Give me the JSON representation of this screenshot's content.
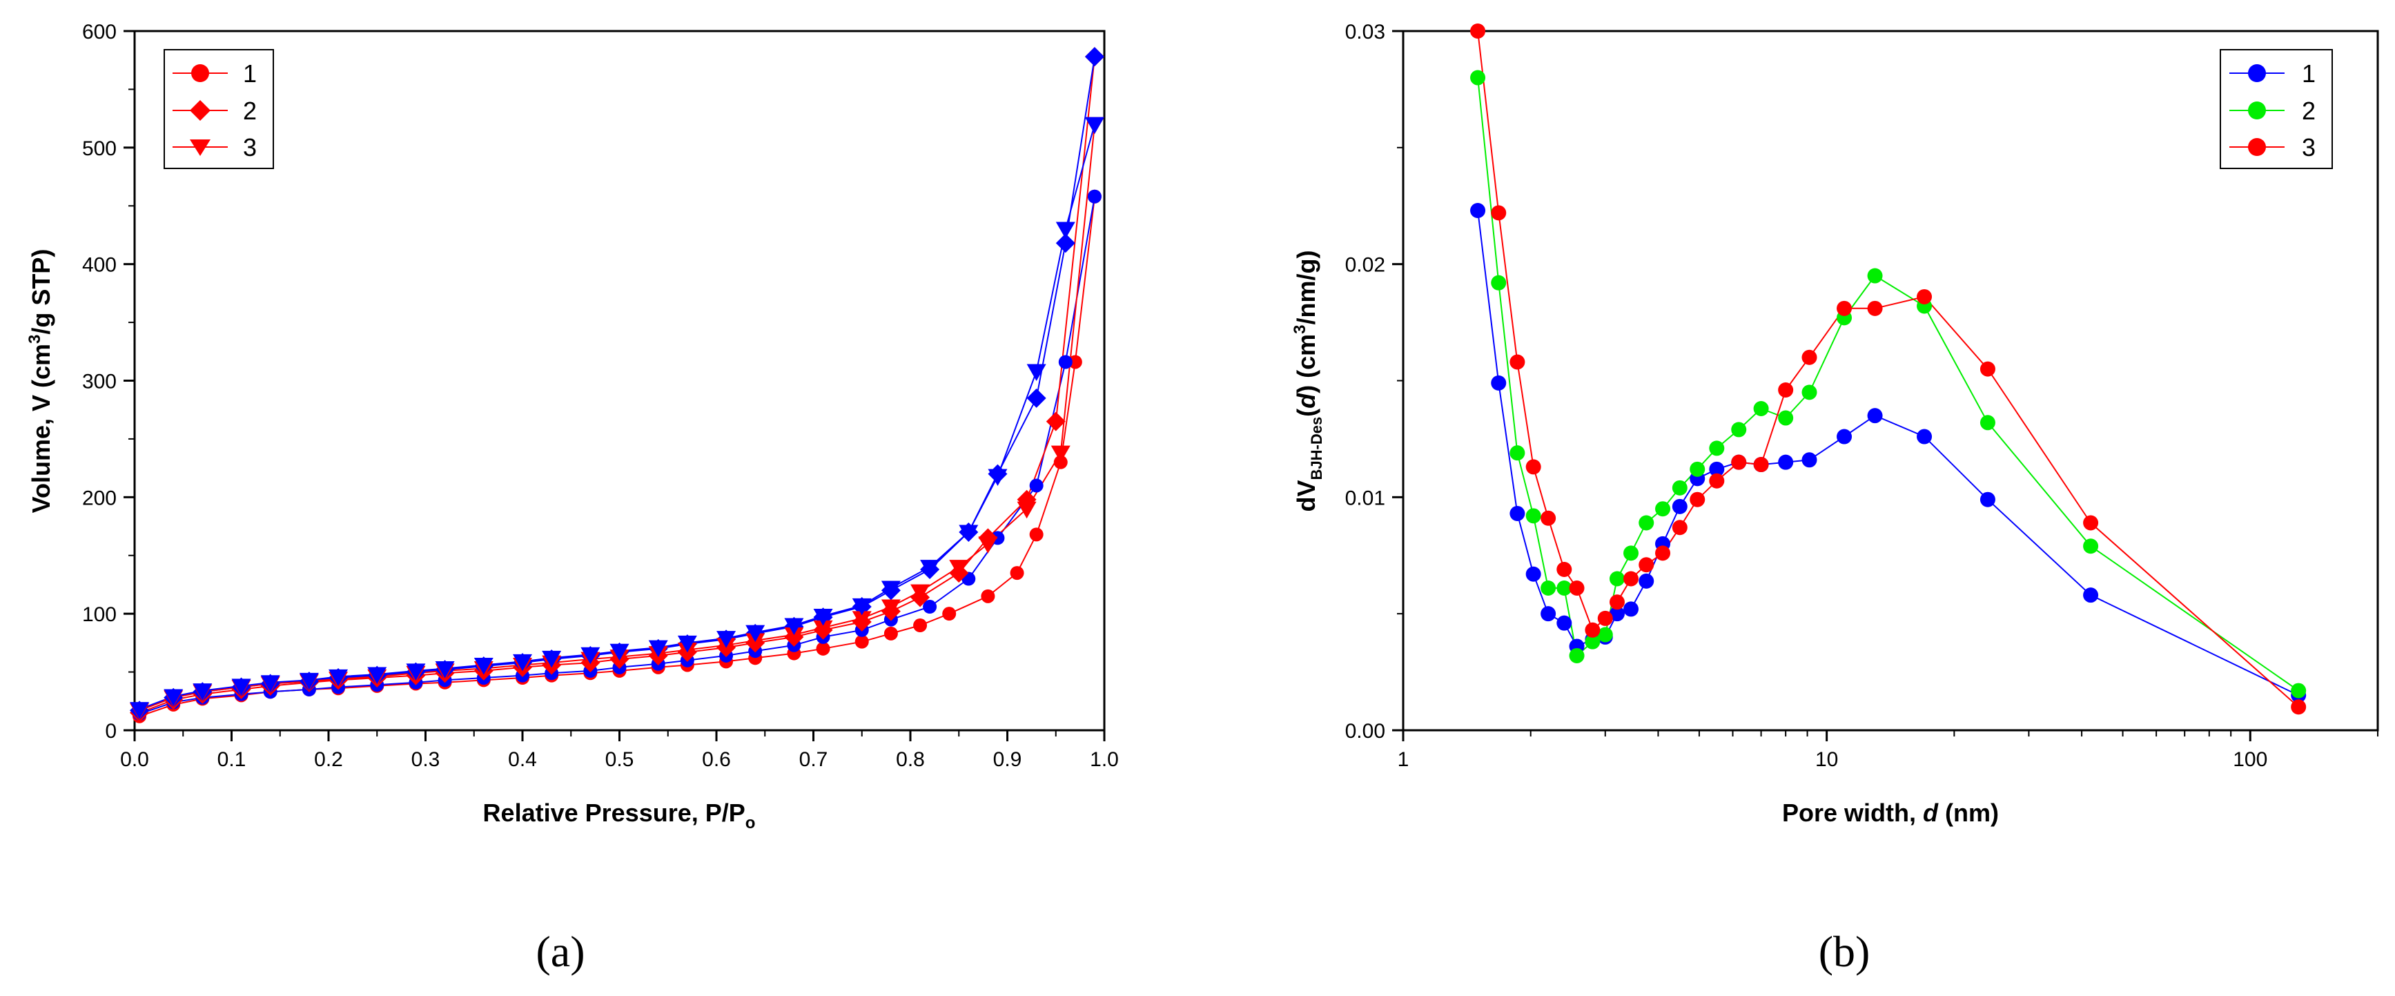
{
  "chart_data": [
    {
      "type": "scatter",
      "panel_label": "(a)",
      "xlabel_main": "Relative Pressure, P/P",
      "xlabel_sub": "o",
      "ylabel_pre": "Volume, V (cm",
      "ylabel_sup": "3",
      "ylabel_post": "/g STP)",
      "xlim": [
        0,
        1.0
      ],
      "ylim": [
        0,
        600
      ],
      "x_ticks": [
        0.0,
        0.1,
        0.2,
        0.3,
        0.4,
        0.5,
        0.6,
        0.7,
        0.8,
        0.9,
        1.0
      ],
      "x_tick_labels": [
        "0.0",
        "0.1",
        "0.2",
        "0.3",
        "0.4",
        "0.5",
        "0.6",
        "0.7",
        "0.8",
        "0.9",
        "1.0"
      ],
      "y_ticks": [
        0,
        100,
        200,
        300,
        400,
        500,
        600
      ],
      "y_tick_labels": [
        "0",
        "100",
        "200",
        "300",
        "400",
        "500",
        "600"
      ],
      "legend_position": "top-left",
      "legend": [
        "1",
        "2",
        "3"
      ],
      "colors": {
        "red": "#ff0000",
        "blue": "#0000ff"
      },
      "series": [
        {
          "name": "1",
          "marker": "circle",
          "branch": "adsorption",
          "color": "#ff0000",
          "x": [
            0.005,
            0.04,
            0.07,
            0.11,
            0.14,
            0.18,
            0.21,
            0.25,
            0.29,
            0.32,
            0.36,
            0.4,
            0.43,
            0.47,
            0.5,
            0.54,
            0.57,
            0.61,
            0.64,
            0.68,
            0.71,
            0.75,
            0.78,
            0.81,
            0.84,
            0.88,
            0.91,
            0.93,
            0.955,
            0.97,
            0.99
          ],
          "y": [
            12,
            22,
            27,
            30,
            33,
            35,
            36,
            38,
            40,
            41,
            43,
            45,
            47,
            49,
            51,
            54,
            56,
            59,
            62,
            66,
            70,
            76,
            83,
            90,
            100,
            115,
            135,
            168,
            230,
            316,
            458
          ]
        },
        {
          "name": "1",
          "marker": "circle",
          "branch": "desorption",
          "color": "#0000ff",
          "x": [
            0.99,
            0.96,
            0.93,
            0.89,
            0.86,
            0.82,
            0.78,
            0.75,
            0.71,
            0.68,
            0.64,
            0.61,
            0.57,
            0.54,
            0.5,
            0.47,
            0.43,
            0.4,
            0.36,
            0.32,
            0.29,
            0.25,
            0.21,
            0.18,
            0.14,
            0.11,
            0.07,
            0.04,
            0.005
          ],
          "y": [
            458,
            316,
            210,
            165,
            130,
            106,
            95,
            86,
            80,
            73,
            68,
            64,
            60,
            57,
            54,
            51,
            49,
            47,
            45,
            43,
            41,
            39,
            37,
            35,
            33,
            31,
            28,
            24,
            14
          ]
        },
        {
          "name": "2",
          "marker": "diamond",
          "branch": "adsorption",
          "color": "#ff0000",
          "x": [
            0.005,
            0.04,
            0.07,
            0.11,
            0.14,
            0.18,
            0.21,
            0.25,
            0.29,
            0.32,
            0.36,
            0.4,
            0.43,
            0.47,
            0.5,
            0.54,
            0.57,
            0.61,
            0.64,
            0.68,
            0.71,
            0.75,
            0.78,
            0.81,
            0.85,
            0.88,
            0.92,
            0.95,
            0.99
          ],
          "y": [
            15,
            26,
            31,
            35,
            38,
            41,
            43,
            45,
            47,
            49,
            51,
            54,
            56,
            58,
            61,
            64,
            67,
            71,
            75,
            80,
            86,
            93,
            102,
            114,
            135,
            165,
            198,
            265,
            578
          ]
        },
        {
          "name": "2",
          "marker": "diamond",
          "branch": "desorption",
          "color": "#0000ff",
          "x": [
            0.99,
            0.96,
            0.93,
            0.89,
            0.86,
            0.82,
            0.78,
            0.75,
            0.71,
            0.68,
            0.64,
            0.61,
            0.57,
            0.54,
            0.5,
            0.47,
            0.43,
            0.4,
            0.36,
            0.32,
            0.29,
            0.25,
            0.21,
            0.18,
            0.14,
            0.11,
            0.07,
            0.04,
            0.005
          ],
          "y": [
            578,
            418,
            285,
            220,
            170,
            138,
            120,
            106,
            97,
            89,
            83,
            78,
            74,
            70,
            67,
            64,
            61,
            58,
            55,
            52,
            50,
            47,
            45,
            42,
            40,
            37,
            33,
            28,
            17
          ]
        },
        {
          "name": "3",
          "marker": "triangle-down",
          "branch": "adsorption",
          "color": "#ff0000",
          "x": [
            0.005,
            0.04,
            0.07,
            0.11,
            0.14,
            0.18,
            0.21,
            0.25,
            0.29,
            0.32,
            0.36,
            0.4,
            0.43,
            0.47,
            0.5,
            0.54,
            0.57,
            0.61,
            0.64,
            0.68,
            0.71,
            0.75,
            0.78,
            0.81,
            0.85,
            0.88,
            0.92,
            0.955,
            0.99
          ],
          "y": [
            17,
            28,
            33,
            37,
            40,
            42,
            44,
            46,
            49,
            51,
            53,
            56,
            58,
            61,
            63,
            66,
            69,
            73,
            77,
            82,
            88,
            96,
            106,
            119,
            140,
            160,
            190,
            238,
            520
          ]
        },
        {
          "name": "3",
          "marker": "triangle-down",
          "branch": "desorption",
          "color": "#0000ff",
          "x": [
            0.99,
            0.96,
            0.93,
            0.89,
            0.86,
            0.82,
            0.78,
            0.75,
            0.71,
            0.68,
            0.64,
            0.61,
            0.57,
            0.54,
            0.5,
            0.47,
            0.43,
            0.4,
            0.36,
            0.32,
            0.29,
            0.25,
            0.21,
            0.18,
            0.14,
            0.11,
            0.07,
            0.04,
            0.005
          ],
          "y": [
            520,
            430,
            308,
            218,
            170,
            140,
            122,
            107,
            98,
            90,
            84,
            79,
            75,
            71,
            68,
            65,
            62,
            59,
            56,
            53,
            51,
            48,
            46,
            43,
            41,
            38,
            34,
            29,
            18
          ]
        }
      ]
    },
    {
      "type": "line",
      "panel_label": "(b)",
      "xscale": "log",
      "xlabel_main": "Pore width, ",
      "xlabel_var": "d",
      "xlabel_post": " (nm)",
      "ylabel_a": "dV",
      "ylabel_sub": "BJH-Des",
      "ylabel_b": "(",
      "ylabel_var": "d",
      "ylabel_c": ") (cm",
      "ylabel_sup": "3",
      "ylabel_d": "/nm/g)",
      "xlim": [
        1,
        200
      ],
      "ylim": [
        0,
        0.03
      ],
      "x_ticks": [
        1,
        10,
        100
      ],
      "x_tick_labels": [
        "1",
        "10",
        "100"
      ],
      "y_ticks": [
        0,
        0.01,
        0.02,
        0.03
      ],
      "y_tick_labels": [
        "0.00",
        "0.01",
        "0.02",
        "0.03"
      ],
      "legend_position": "top-right",
      "legend": [
        "1",
        "2",
        "3"
      ],
      "series": [
        {
          "name": "1",
          "color": "#0000ff",
          "x": [
            1.5,
            1.68,
            1.86,
            2.03,
            2.2,
            2.4,
            2.57,
            2.8,
            3.0,
            3.2,
            3.45,
            3.75,
            4.1,
            4.5,
            4.95,
            5.5,
            6.2,
            7.0,
            8.0,
            9.1,
            11.0,
            13.0,
            17.0,
            24.0,
            42.0,
            130.0
          ],
          "y": [
            0.0223,
            0.0149,
            0.0093,
            0.0067,
            0.005,
            0.0046,
            0.0036,
            0.0039,
            0.004,
            0.005,
            0.0052,
            0.0064,
            0.008,
            0.0096,
            0.0108,
            0.0112,
            0.0115,
            0.0114,
            0.0115,
            0.0116,
            0.0126,
            0.0135,
            0.0126,
            0.0099,
            0.0058,
            0.0015
          ]
        },
        {
          "name": "2",
          "color": "#00ee00",
          "x": [
            1.5,
            1.68,
            1.86,
            2.03,
            2.2,
            2.4,
            2.57,
            2.8,
            3.0,
            3.2,
            3.45,
            3.75,
            4.1,
            4.5,
            4.95,
            5.5,
            6.2,
            7.0,
            8.0,
            9.1,
            11.0,
            13.0,
            17.0,
            24.0,
            42.0,
            130.0
          ],
          "y": [
            0.028,
            0.0192,
            0.0119,
            0.0092,
            0.0061,
            0.0061,
            0.0032,
            0.0038,
            0.0041,
            0.0065,
            0.0076,
            0.0089,
            0.0095,
            0.0104,
            0.0112,
            0.0121,
            0.0129,
            0.0138,
            0.0134,
            0.0145,
            0.0177,
            0.0195,
            0.0182,
            0.0132,
            0.0079,
            0.0017
          ]
        },
        {
          "name": "3",
          "color": "#ff0000",
          "x": [
            1.5,
            1.68,
            1.86,
            2.03,
            2.2,
            2.4,
            2.57,
            2.8,
            3.0,
            3.2,
            3.45,
            3.75,
            4.1,
            4.5,
            4.95,
            5.5,
            6.2,
            7.0,
            8.0,
            9.1,
            11.0,
            13.0,
            17.0,
            24.0,
            42.0,
            130.0
          ],
          "y": [
            0.03,
            0.0222,
            0.0158,
            0.0113,
            0.0091,
            0.0069,
            0.0061,
            0.0043,
            0.0048,
            0.0055,
            0.0065,
            0.0071,
            0.0076,
            0.0087,
            0.0099,
            0.0107,
            0.0115,
            0.0114,
            0.0146,
            0.016,
            0.0181,
            0.0181,
            0.0186,
            0.0155,
            0.0089,
            0.001
          ]
        }
      ]
    }
  ]
}
